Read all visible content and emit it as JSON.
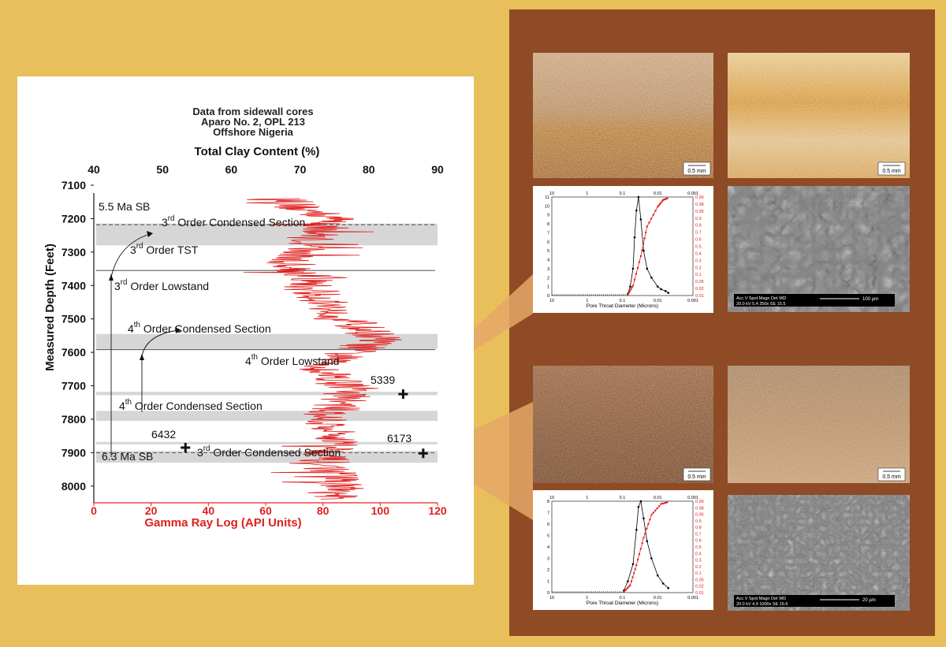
{
  "colors": {
    "background": "#E9BF5C",
    "panel": "#8E4B25",
    "gamma": "#E0201E",
    "connector": "#E5A766",
    "band": "#D6D6D6"
  },
  "header": {
    "lines": [
      "Data from sidewall cores",
      "Aparo No. 2, OPL 213",
      "Offshore Nigeria"
    ],
    "top_axis_title": "Total Clay Content (%)",
    "bottom_axis_title": "Gamma Ray Log (API Units)",
    "y_axis_title": "Measured Depth (Feet)"
  },
  "chart_data": {
    "type": "line",
    "x_bottom_range": [
      0,
      120
    ],
    "x_bottom_ticks": [
      "0",
      "20",
      "40",
      "60",
      "80",
      "100",
      "120"
    ],
    "x_top_range": [
      40,
      90
    ],
    "x_top_ticks": [
      "40",
      "50",
      "60",
      "70",
      "80",
      "90"
    ],
    "y_range": [
      7100,
      8050
    ],
    "y_ticks": [
      "7100",
      "7200",
      "7300",
      "7400",
      "7500",
      "7600",
      "7700",
      "7800",
      "7900",
      "8000"
    ],
    "series": [
      {
        "color": "#E0201E",
        "profile": [
          [
            7140,
            66
          ],
          [
            7170,
            72
          ],
          [
            7200,
            84
          ],
          [
            7230,
            80
          ],
          [
            7260,
            76
          ],
          [
            7290,
            74
          ],
          [
            7320,
            68
          ],
          [
            7350,
            70
          ],
          [
            7380,
            76
          ],
          [
            7410,
            74
          ],
          [
            7440,
            80
          ],
          [
            7470,
            83
          ],
          [
            7500,
            88
          ],
          [
            7530,
            94
          ],
          [
            7560,
            100
          ],
          [
            7590,
            92
          ],
          [
            7620,
            84
          ],
          [
            7650,
            80
          ],
          [
            7680,
            86
          ],
          [
            7710,
            90
          ],
          [
            7740,
            88
          ],
          [
            7770,
            84
          ],
          [
            7800,
            80
          ],
          [
            7830,
            82
          ],
          [
            7860,
            86
          ],
          [
            7890,
            84
          ],
          [
            7920,
            80
          ],
          [
            7950,
            82
          ],
          [
            7980,
            86
          ],
          [
            8010,
            84
          ],
          [
            8040,
            82
          ]
        ]
      }
    ],
    "points": [
      {
        "label": "5339",
        "gamma": 108,
        "depth": 7725
      },
      {
        "label": "6432",
        "gamma": 32,
        "depth": 7885
      },
      {
        "label": "6173",
        "gamma": 115,
        "depth": 7902
      }
    ],
    "bands": [
      {
        "from": 7215,
        "to": 7280
      },
      {
        "from": 7545,
        "to": 7590
      },
      {
        "from": 7718,
        "to": 7728
      },
      {
        "from": 7775,
        "to": 7805
      },
      {
        "from": 7868,
        "to": 7875
      },
      {
        "from": 7895,
        "to": 7930
      }
    ],
    "boundaries": [
      {
        "depth": 7218,
        "style": "dashed"
      },
      {
        "depth": 7355,
        "style": "solid"
      },
      {
        "depth": 7592,
        "style": "solid"
      },
      {
        "depth": 7900,
        "style": "dashed"
      }
    ]
  },
  "annotations": {
    "sb_top": "5.5 Ma SB",
    "cs3_top": "3rd Order Condensed Section",
    "tst3": "3rd Order TST",
    "lowstand3": "3rd Order Lowstand",
    "cs4_a": "4th Order Condensed Section",
    "lowstand4": "4th Order Lowstand",
    "cs4_b": "4th Order Condensed Section",
    "sb_bottom": "6.3 Ma SB",
    "cs3_bottom": "3rd Order Condensed Section"
  },
  "samples": [
    {
      "label": "5339",
      "psd": {
        "top_ticks": [
          "10",
          "1",
          "0.1",
          "0.01",
          "0.001"
        ],
        "bottom_ticks": [
          "10",
          "1",
          "0.1",
          "0.01",
          "0.001"
        ],
        "left_ticks": [
          "0",
          "1",
          "2",
          "3",
          "4",
          "5",
          "6",
          "7",
          "8",
          "9",
          "10",
          "11"
        ],
        "right_ticks": [
          "0.01",
          "0.02",
          "0.05",
          "0.1",
          "0.2",
          "0.3",
          "0.4",
          "0.5",
          "0.6",
          "0.7",
          "0.8",
          "0.9",
          "0.95",
          "0.98",
          "0.99"
        ],
        "x_label": "Pore Throat Diameter (Microns)",
        "incremental": [
          [
            0.07,
            0.2
          ],
          [
            0.06,
            1.0
          ],
          [
            0.05,
            3.0
          ],
          [
            0.045,
            6.5
          ],
          [
            0.04,
            9.5
          ],
          [
            0.035,
            11
          ],
          [
            0.03,
            8.5
          ],
          [
            0.025,
            5
          ],
          [
            0.02,
            3
          ],
          [
            0.015,
            2
          ],
          [
            0.01,
            1
          ],
          [
            0.008,
            0.7
          ],
          [
            0.006,
            0.5
          ],
          [
            0.005,
            0.3
          ]
        ],
        "cumulative": [
          [
            0.07,
            0.01
          ],
          [
            0.05,
            0.1
          ],
          [
            0.03,
            0.4
          ],
          [
            0.02,
            0.7
          ],
          [
            0.01,
            0.9
          ],
          [
            0.007,
            0.97
          ],
          [
            0.005,
            0.99
          ]
        ]
      },
      "scale_bar": "0.5 mm",
      "sem_labels": [
        "Acc.V  Spot Magn   Det  WD",
        "20.0 kV 5.4  250x   SE  15.5",
        "100 µm"
      ]
    },
    {
      "label": "6173",
      "psd": {
        "top_ticks": [
          "10",
          "1",
          "0.1",
          "0.01",
          "0.001"
        ],
        "bottom_ticks": [
          "10",
          "1",
          "0.1",
          "0.01",
          "0.001"
        ],
        "left_ticks": [
          "0",
          "1",
          "2",
          "3",
          "4",
          "5",
          "6",
          "7",
          "8"
        ],
        "right_ticks": [
          "0.01",
          "0.02",
          "0.05",
          "0.1",
          "0.2",
          "0.3",
          "0.4",
          "0.5",
          "0.6",
          "0.7",
          "0.8",
          "0.9",
          "0.95",
          "0.98",
          "0.99"
        ],
        "x_label": "Pore Throat Diameter (Microns)",
        "incremental": [
          [
            0.09,
            0.2
          ],
          [
            0.07,
            1.0
          ],
          [
            0.05,
            2.5
          ],
          [
            0.04,
            5.5
          ],
          [
            0.035,
            7.5
          ],
          [
            0.03,
            8
          ],
          [
            0.025,
            6.5
          ],
          [
            0.02,
            4.5
          ],
          [
            0.015,
            3
          ],
          [
            0.01,
            1.5
          ],
          [
            0.007,
            0.8
          ],
          [
            0.005,
            0.4
          ]
        ],
        "cumulative": [
          [
            0.09,
            0.01
          ],
          [
            0.06,
            0.08
          ],
          [
            0.04,
            0.3
          ],
          [
            0.025,
            0.6
          ],
          [
            0.015,
            0.85
          ],
          [
            0.008,
            0.97
          ],
          [
            0.005,
            0.99
          ]
        ]
      },
      "scale_bar": "0.5 mm",
      "sem_labels": [
        "Acc.V  Spot Magn   Det  WD",
        "20.0 kV 4.9  1000x  SE  15.6",
        "20 µm"
      ]
    }
  ]
}
